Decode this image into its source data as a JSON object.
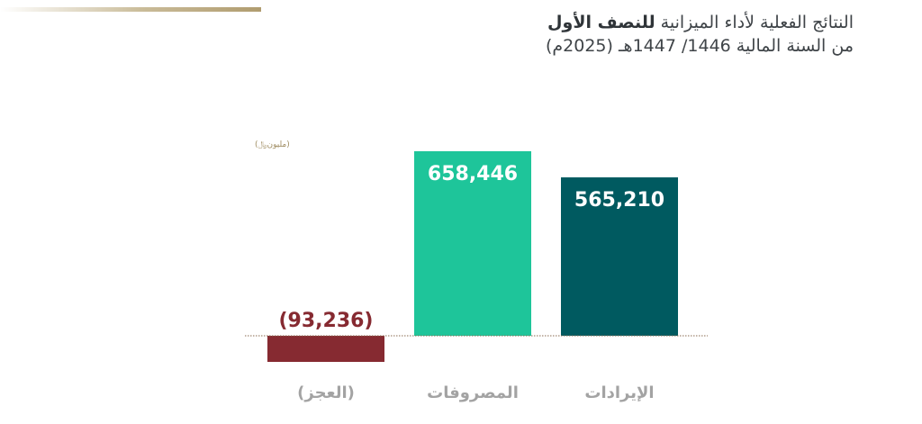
{
  "header": {
    "title_regular": "النتائج الفعلية لأداء الميزانية",
    "title_bold": "للنصف الأول",
    "subtitle": "من السنة المالية 1446/ 1447هـ (2025م)"
  },
  "unit_label": "(مليون﷼)",
  "colors": {
    "deficit": "#862a31",
    "expenditure": "#1ec59a",
    "revenue": "#005a60",
    "category_text": "#a3a3a3",
    "baseline": "#8a6a50"
  },
  "chart_data": {
    "type": "bar",
    "categories": [
      "(العجز)",
      "المصروفات",
      "الإيرادات"
    ],
    "values": [
      -93236,
      658446,
      565210
    ],
    "value_labels": [
      "(93,236)",
      "658,446",
      "565,210"
    ],
    "title": "",
    "xlabel": "",
    "ylabel": "",
    "ylim": [
      -93236,
      658446
    ]
  }
}
